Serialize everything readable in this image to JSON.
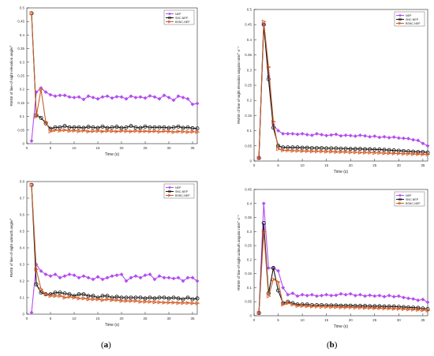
{
  "panel_labels": [
    "a",
    "b"
  ],
  "colors": {
    "NEP": "#b44cf0",
    "SNC-NEP": "#111111",
    "BSNC-NEP": "#c0602a",
    "BSNC-NEP_marker": "#e05a20"
  },
  "chart_data": [
    {
      "type": "line",
      "panel": "a-top",
      "ylabel": "RMSE of line-of-sight elevation angle/°",
      "xlabel": "Time (s)",
      "xlim": [
        0,
        36
      ],
      "ylim": [
        0,
        0.5
      ],
      "xticks": [
        0,
        5,
        10,
        15,
        20,
        25,
        30,
        35
      ],
      "yticks": [
        0,
        0.05,
        0.1,
        0.15,
        0.2,
        0.25,
        0.3,
        0.35,
        0.4,
        0.45,
        0.5
      ],
      "grid": false,
      "legend": "top-right",
      "x": [
        1,
        2,
        3,
        4,
        5,
        6,
        7,
        8,
        9,
        10,
        11,
        12,
        13,
        14,
        15,
        16,
        17,
        18,
        19,
        20,
        21,
        22,
        23,
        24,
        25,
        26,
        27,
        28,
        29,
        30,
        31,
        32,
        33,
        34,
        35,
        36
      ],
      "series": [
        {
          "name": "NEP",
          "values": [
            0.01,
            0.19,
            0.205,
            0.19,
            0.18,
            0.175,
            0.178,
            0.178,
            0.172,
            0.17,
            0.172,
            0.163,
            0.175,
            0.17,
            0.165,
            0.172,
            0.175,
            0.168,
            0.173,
            0.172,
            0.165,
            0.175,
            0.17,
            0.172,
            0.168,
            0.176,
            0.172,
            0.165,
            0.178,
            0.17,
            0.16,
            0.175,
            0.17,
            0.165,
            0.145,
            0.148
          ]
        },
        {
          "name": "SNC-NEP",
          "values": [
            0.48,
            0.105,
            0.095,
            0.075,
            0.055,
            0.06,
            0.06,
            0.065,
            0.06,
            0.06,
            0.06,
            0.058,
            0.062,
            0.06,
            0.058,
            0.063,
            0.058,
            0.06,
            0.062,
            0.058,
            0.06,
            0.065,
            0.06,
            0.058,
            0.063,
            0.06,
            0.06,
            0.06,
            0.06,
            0.058,
            0.06,
            0.063,
            0.058,
            0.06,
            0.057,
            0.056
          ]
        },
        {
          "name": "BSNC-NEP",
          "values": [
            0.48,
            0.1,
            0.2,
            0.08,
            0.045,
            0.05,
            0.048,
            0.05,
            0.047,
            0.048,
            0.046,
            0.048,
            0.045,
            0.046,
            0.047,
            0.045,
            0.047,
            0.046,
            0.045,
            0.047,
            0.046,
            0.045,
            0.047,
            0.045,
            0.046,
            0.045,
            0.046,
            0.044,
            0.046,
            0.045,
            0.043,
            0.045,
            0.044,
            0.043,
            0.044,
            0.043
          ]
        }
      ]
    },
    {
      "type": "line",
      "panel": "b-top",
      "ylabel": "RMSE of line-of-sight elevation angular rate/°·s⁻¹",
      "xlabel": "Time (s)",
      "xlim": [
        0,
        36
      ],
      "ylim": [
        0,
        0.5
      ],
      "xticks": [
        0,
        5,
        10,
        15,
        20,
        25,
        30,
        35
      ],
      "yticks": [
        0,
        0.05,
        0.1,
        0.15,
        0.2,
        0.25,
        0.3,
        0.35,
        0.4,
        0.45,
        0.5
      ],
      "grid": false,
      "legend": "top-right",
      "x": [
        1,
        2,
        3,
        4,
        5,
        6,
        7,
        8,
        9,
        10,
        11,
        12,
        13,
        14,
        15,
        16,
        17,
        18,
        19,
        20,
        21,
        22,
        23,
        24,
        25,
        26,
        27,
        28,
        29,
        30,
        31,
        32,
        33,
        34,
        35,
        36
      ],
      "series": [
        {
          "name": "NEP",
          "values": [
            0.01,
            0.45,
            0.28,
            0.12,
            0.1,
            0.09,
            0.09,
            0.09,
            0.088,
            0.09,
            0.087,
            0.085,
            0.09,
            0.087,
            0.084,
            0.086,
            0.088,
            0.083,
            0.085,
            0.084,
            0.082,
            0.085,
            0.083,
            0.08,
            0.082,
            0.078,
            0.08,
            0.077,
            0.079,
            0.076,
            0.075,
            0.074,
            0.07,
            0.068,
            0.058,
            0.05
          ]
        },
        {
          "name": "SNC-NEP",
          "values": [
            0.01,
            0.45,
            0.27,
            0.11,
            0.05,
            0.045,
            0.045,
            0.045,
            0.045,
            0.044,
            0.044,
            0.043,
            0.043,
            0.043,
            0.042,
            0.042,
            0.042,
            0.041,
            0.041,
            0.04,
            0.04,
            0.04,
            0.039,
            0.039,
            0.038,
            0.038,
            0.037,
            0.036,
            0.035,
            0.034,
            0.033,
            0.032,
            0.031,
            0.03,
            0.03,
            0.028
          ]
        },
        {
          "name": "BSNC-NEP",
          "values": [
            0.01,
            0.46,
            0.31,
            0.13,
            0.04,
            0.035,
            0.035,
            0.034,
            0.034,
            0.033,
            0.033,
            0.032,
            0.032,
            0.032,
            0.031,
            0.031,
            0.03,
            0.03,
            0.03,
            0.029,
            0.029,
            0.028,
            0.028,
            0.028,
            0.027,
            0.027,
            0.026,
            0.026,
            0.025,
            0.025,
            0.024,
            0.024,
            0.023,
            0.023,
            0.022,
            0.022
          ]
        }
      ]
    },
    {
      "type": "line",
      "panel": "a-bottom",
      "ylabel": "RMSE of line-of-sight azimuth angle/°",
      "xlabel": "Time (s)",
      "xlim": [
        0,
        36
      ],
      "ylim": [
        0,
        0.8
      ],
      "xticks": [
        0,
        5,
        10,
        15,
        20,
        25,
        30,
        35
      ],
      "yticks": [
        0,
        0.1,
        0.2,
        0.3,
        0.4,
        0.5,
        0.6,
        0.7,
        0.8
      ],
      "grid": false,
      "legend": "top-right",
      "x": [
        1,
        2,
        3,
        4,
        5,
        6,
        7,
        8,
        9,
        10,
        11,
        12,
        13,
        14,
        15,
        16,
        17,
        18,
        19,
        20,
        21,
        22,
        23,
        24,
        25,
        26,
        27,
        28,
        29,
        30,
        31,
        32,
        33,
        34,
        35,
        36
      ],
      "series": [
        {
          "name": "NEP",
          "values": [
            0.01,
            0.3,
            0.26,
            0.24,
            0.23,
            0.24,
            0.22,
            0.23,
            0.24,
            0.235,
            0.22,
            0.23,
            0.22,
            0.21,
            0.225,
            0.21,
            0.22,
            0.23,
            0.235,
            0.24,
            0.2,
            0.22,
            0.23,
            0.22,
            0.235,
            0.24,
            0.21,
            0.23,
            0.22,
            0.22,
            0.215,
            0.22,
            0.2,
            0.22,
            0.22,
            0.2
          ]
        },
        {
          "name": "SNC-NEP",
          "values": [
            0.78,
            0.18,
            0.13,
            0.12,
            0.12,
            0.13,
            0.13,
            0.125,
            0.12,
            0.11,
            0.12,
            0.12,
            0.11,
            0.11,
            0.1,
            0.11,
            0.11,
            0.1,
            0.105,
            0.1,
            0.1,
            0.1,
            0.1,
            0.1,
            0.095,
            0.1,
            0.095,
            0.1,
            0.1,
            0.095,
            0.1,
            0.095,
            0.09,
            0.1,
            0.09,
            0.095
          ]
        },
        {
          "name": "BSNC-NEP",
          "values": [
            0.78,
            0.27,
            0.15,
            0.12,
            0.11,
            0.11,
            0.11,
            0.1,
            0.105,
            0.1,
            0.095,
            0.095,
            0.09,
            0.09,
            0.09,
            0.085,
            0.09,
            0.085,
            0.085,
            0.08,
            0.08,
            0.08,
            0.08,
            0.075,
            0.075,
            0.075,
            0.072,
            0.072,
            0.07,
            0.07,
            0.07,
            0.068,
            0.068,
            0.068,
            0.066,
            0.066
          ]
        }
      ]
    },
    {
      "type": "line",
      "panel": "b-bottom",
      "ylabel": "RMSE of line-of-sight azimuth angular rate/°·s⁻¹",
      "xlabel": "Time (s)",
      "xlim": [
        0,
        36
      ],
      "ylim": [
        0,
        0.45
      ],
      "xticks": [
        0,
        5,
        10,
        15,
        20,
        25,
        30,
        35
      ],
      "yticks": [
        0,
        0.05,
        0.1,
        0.15,
        0.2,
        0.25,
        0.3,
        0.35,
        0.4,
        0.45
      ],
      "grid": false,
      "legend": "top-right",
      "x": [
        1,
        2,
        3,
        4,
        5,
        6,
        7,
        8,
        9,
        10,
        11,
        12,
        13,
        14,
        15,
        16,
        17,
        18,
        19,
        20,
        21,
        22,
        23,
        24,
        25,
        26,
        27,
        28,
        29,
        30,
        31,
        32,
        33,
        34,
        35,
        36
      ],
      "series": [
        {
          "name": "NEP",
          "values": [
            0.01,
            0.4,
            0.17,
            0.17,
            0.16,
            0.1,
            0.075,
            0.08,
            0.07,
            0.075,
            0.072,
            0.075,
            0.07,
            0.072,
            0.075,
            0.072,
            0.073,
            0.078,
            0.075,
            0.078,
            0.072,
            0.075,
            0.07,
            0.073,
            0.07,
            0.072,
            0.068,
            0.072,
            0.068,
            0.07,
            0.065,
            0.062,
            0.06,
            0.055,
            0.058,
            0.048
          ]
        },
        {
          "name": "SNC-NEP",
          "values": [
            0.01,
            0.33,
            0.08,
            0.17,
            0.09,
            0.045,
            0.05,
            0.045,
            0.04,
            0.04,
            0.04,
            0.038,
            0.038,
            0.038,
            0.037,
            0.037,
            0.037,
            0.036,
            0.036,
            0.036,
            0.035,
            0.035,
            0.035,
            0.034,
            0.034,
            0.034,
            0.033,
            0.033,
            0.033,
            0.032,
            0.031,
            0.03,
            0.029,
            0.028,
            0.026,
            0.024
          ]
        },
        {
          "name": "BSNC-NEP",
          "values": [
            0.01,
            0.3,
            0.07,
            0.13,
            0.12,
            0.04,
            0.045,
            0.04,
            0.035,
            0.035,
            0.034,
            0.033,
            0.033,
            0.032,
            0.032,
            0.031,
            0.031,
            0.03,
            0.03,
            0.03,
            0.029,
            0.029,
            0.028,
            0.028,
            0.027,
            0.027,
            0.026,
            0.026,
            0.025,
            0.025,
            0.024,
            0.023,
            0.022,
            0.021,
            0.02,
            0.019
          ]
        }
      ]
    }
  ]
}
